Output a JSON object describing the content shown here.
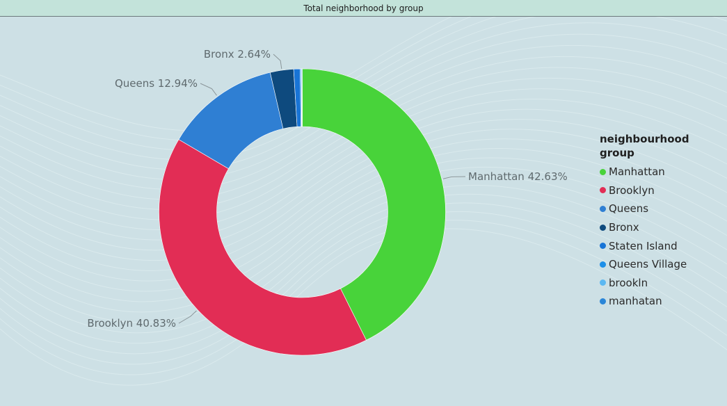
{
  "title": "Total neighborhood by group",
  "chart_data": {
    "type": "pie",
    "donut": true,
    "title": "Total neighborhood by group",
    "legend_title": "neighbourhood group",
    "legend_position": "right",
    "slices": [
      {
        "name": "Manhattan",
        "value": 42.63,
        "label": "Manhattan 42.63%",
        "color": "#48d33a"
      },
      {
        "name": "Brooklyn",
        "value": 40.83,
        "label": "Brooklyn 40.83%",
        "color": "#e22d55"
      },
      {
        "name": "Queens",
        "value": 12.94,
        "label": "Queens 12.94%",
        "color": "#2f7fd3"
      },
      {
        "name": "Bronx",
        "value": 2.64,
        "label": "Bronx 2.64%",
        "color": "#0e4a7e"
      },
      {
        "name": "Staten Island",
        "value": 0.72,
        "label": "",
        "color": "#1874d6"
      },
      {
        "name": "Queens Village",
        "value": 0.12,
        "label": "",
        "color": "#1d8fe8"
      },
      {
        "name": "brookln",
        "value": 0.06,
        "label": "",
        "color": "#5bb8f2"
      },
      {
        "name": "manhatan",
        "value": 0.06,
        "label": "",
        "color": "#2a86d8"
      }
    ]
  },
  "legend": {
    "items": [
      {
        "label": "Manhattan",
        "color": "#48d33a"
      },
      {
        "label": "Brooklyn",
        "color": "#e22d55"
      },
      {
        "label": "Queens",
        "color": "#2f7fd3"
      },
      {
        "label": "Bronx",
        "color": "#0e4a7e"
      },
      {
        "label": "Staten Island",
        "color": "#1874d6"
      },
      {
        "label": "Queens Village",
        "color": "#1d8fe8"
      },
      {
        "label": "brookln",
        "color": "#5bb8f2"
      },
      {
        "label": "manhatan",
        "color": "#2a86d8"
      }
    ]
  }
}
